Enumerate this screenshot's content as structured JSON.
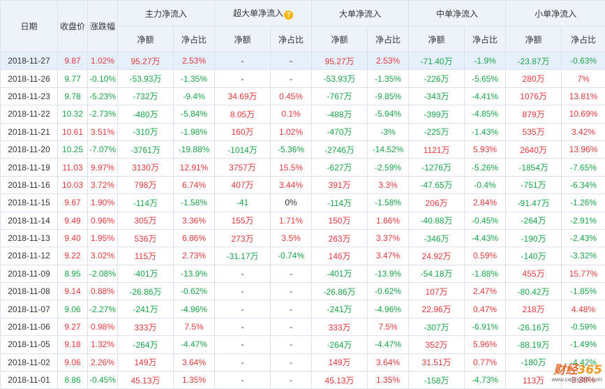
{
  "header": {
    "date": "日期",
    "close": "收盘价",
    "change": "涨跌幅",
    "groups": [
      "主力净流入",
      "超大单净流入",
      "大单净流入",
      "中单净流入",
      "小单净流入"
    ],
    "help_icon": "?",
    "net_amount": "净额",
    "net_ratio": "净占比"
  },
  "colors": {
    "up": "#e4393c",
    "down": "#19a64a",
    "header_bg": "#eef3fa",
    "highlight_row": "#e6f0fb"
  },
  "rows": [
    {
      "date": "2018-11-27",
      "close": "9.87",
      "pct": "1.02%",
      "cells": [
        "95.27万",
        "2.53%",
        "-",
        "-",
        "95.27万",
        "2.53%",
        "-71.40万",
        "-1.9%",
        "-23.87万",
        "-0.63%"
      ]
    },
    {
      "date": "2018-11-26",
      "close": "9.77",
      "pct": "-0.10%",
      "cells": [
        "-53.93万",
        "-1.35%",
        "-",
        "-",
        "-53.93万",
        "-1.35%",
        "-226万",
        "-5.65%",
        "280万",
        "7%"
      ]
    },
    {
      "date": "2018-11-23",
      "close": "9.78",
      "pct": "-5.23%",
      "cells": [
        "-732万",
        "-9.4%",
        "34.69万",
        "0.45%",
        "-767万",
        "-9.85%",
        "-343万",
        "-4.41%",
        "1076万",
        "13.81%"
      ]
    },
    {
      "date": "2018-11-22",
      "close": "10.32",
      "pct": "-2.73%",
      "cells": [
        "-480万",
        "-5.84%",
        "8.05万",
        "0.1%",
        "-488万",
        "-5.94%",
        "-399万",
        "-4.85%",
        "879万",
        "10.69%"
      ]
    },
    {
      "date": "2018-11-21",
      "close": "10.61",
      "pct": "3.51%",
      "cells": [
        "-310万",
        "-1.98%",
        "160万",
        "1.02%",
        "-470万",
        "-3%",
        "-225万",
        "-1.43%",
        "535万",
        "3.42%"
      ]
    },
    {
      "date": "2018-11-20",
      "close": "10.25",
      "pct": "-7.07%",
      "cells": [
        "-3761万",
        "-19.88%",
        "-1014万",
        "-5.36%",
        "-2746万",
        "-14.52%",
        "1121万",
        "5.93%",
        "2640万",
        "13.96%"
      ]
    },
    {
      "date": "2018-11-19",
      "close": "11.03",
      "pct": "9.97%",
      "cells": [
        "3130万",
        "12.91%",
        "3757万",
        "15.5%",
        "-627万",
        "-2.59%",
        "-1276万",
        "-5.26%",
        "-1854万",
        "-7.65%"
      ]
    },
    {
      "date": "2018-11-16",
      "close": "10.03",
      "pct": "3.72%",
      "cells": [
        "798万",
        "6.74%",
        "407万",
        "3.44%",
        "391万",
        "3.3%",
        "-47.65万",
        "-0.4%",
        "-751万",
        "-6.34%"
      ]
    },
    {
      "date": "2018-11-15",
      "close": "9.67",
      "pct": "1.90%",
      "cells": [
        "-114万",
        "-1.58%",
        "-41",
        "0%",
        "-114万",
        "-1.58%",
        "206万",
        "2.84%",
        "-91.47万",
        "-1.26%"
      ]
    },
    {
      "date": "2018-11-14",
      "close": "9.49",
      "pct": "0.96%",
      "cells": [
        "305万",
        "3.36%",
        "155万",
        "1.71%",
        "150万",
        "1.66%",
        "-40.88万",
        "-0.45%",
        "-264万",
        "-2.91%"
      ]
    },
    {
      "date": "2018-11-13",
      "close": "9.40",
      "pct": "1.95%",
      "cells": [
        "536万",
        "6.86%",
        "273万",
        "3.5%",
        "263万",
        "3.37%",
        "-346万",
        "-4.43%",
        "-190万",
        "-2.43%"
      ]
    },
    {
      "date": "2018-11-12",
      "close": "9.22",
      "pct": "3.02%",
      "cells": [
        "115万",
        "2.73%",
        "-31.17万",
        "-0.74%",
        "146万",
        "3.47%",
        "24.92万",
        "0.59%",
        "-140万",
        "-3.32%"
      ]
    },
    {
      "date": "2018-11-09",
      "close": "8.95",
      "pct": "-2.08%",
      "cells": [
        "-401万",
        "-13.9%",
        "-",
        "-",
        "-401万",
        "-13.9%",
        "-54.18万",
        "-1.88%",
        "455万",
        "15.77%"
      ]
    },
    {
      "date": "2018-11-08",
      "close": "9.14",
      "pct": "0.88%",
      "cells": [
        "-26.86万",
        "-0.62%",
        "-",
        "-",
        "-26.86万",
        "-0.62%",
        "107万",
        "2.47%",
        "-80.42万",
        "-1.85%"
      ]
    },
    {
      "date": "2018-11-07",
      "close": "9.06",
      "pct": "-2.27%",
      "cells": [
        "-241万",
        "-4.96%",
        "-",
        "-",
        "-241万",
        "-4.96%",
        "22.96万",
        "0.47%",
        "218万",
        "4.48%"
      ]
    },
    {
      "date": "2018-11-06",
      "close": "9.27",
      "pct": "0.98%",
      "cells": [
        "333万",
        "7.5%",
        "-",
        "-",
        "333万",
        "7.5%",
        "-307万",
        "-6.91%",
        "-26.16万",
        "-0.59%"
      ]
    },
    {
      "date": "2018-11-05",
      "close": "9.18",
      "pct": "1.32%",
      "cells": [
        "-264万",
        "-4.47%",
        "-",
        "-",
        "-264万",
        "-4.47%",
        "352万",
        "5.96%",
        "-88.19万",
        "-1.49%"
      ]
    },
    {
      "date": "2018-11-02",
      "close": "9.06",
      "pct": "2.26%",
      "cells": [
        "149万",
        "3.64%",
        "-",
        "-",
        "149万",
        "3.64%",
        "31.51万",
        "0.77%",
        "-180万",
        "-4.42%"
      ]
    },
    {
      "date": "2018-11-01",
      "close": "8.86",
      "pct": "-0.45%",
      "cells": [
        "45.13万",
        "1.35%",
        "-",
        "-",
        "45.13万",
        "1.35%",
        "-158万",
        "-4.73%",
        "113万",
        "3.38%"
      ]
    }
  ],
  "watermark": {
    "main": "财经",
    "num": "365",
    "sub": "www.caijing365.com"
  }
}
